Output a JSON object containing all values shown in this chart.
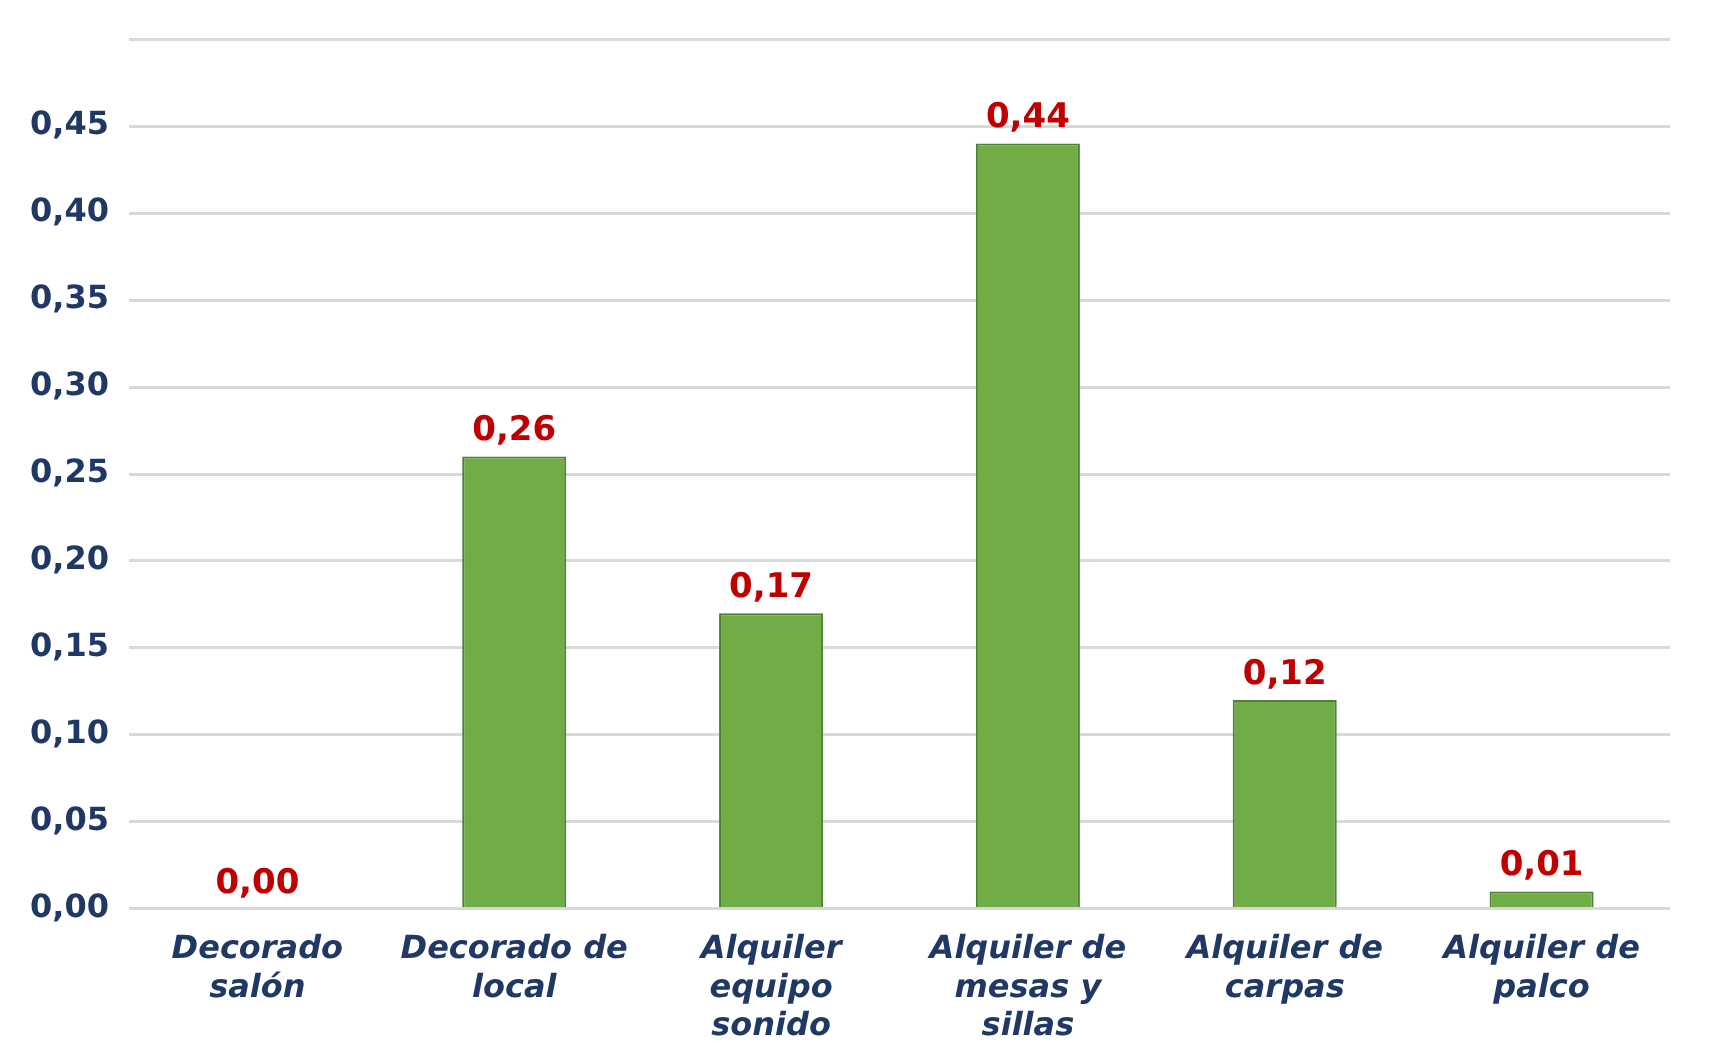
{
  "chart_data": {
    "type": "bar",
    "categories": [
      "Decorado salón",
      "Decorado de local",
      "Alquiler equipo sonido",
      "Alquiler de mesas y sillas",
      "Alquiler de carpas",
      "Alquiler de palco"
    ],
    "values": [
      0.0,
      0.26,
      0.17,
      0.44,
      0.12,
      0.01
    ],
    "value_labels": [
      "0,00",
      "0,26",
      "0,17",
      "0,44",
      "0,12",
      "0,01"
    ],
    "color": "#70ad47",
    "ylim": [
      0,
      0.5
    ],
    "yticks": [
      {
        "value": 0,
        "label": "0,00"
      },
      {
        "value": 0.05,
        "label": "0,05"
      },
      {
        "value": 0.1,
        "label": "0,10"
      },
      {
        "value": 0.15,
        "label": "0,15"
      },
      {
        "value": 0.2,
        "label": "0,20"
      },
      {
        "value": 0.25,
        "label": "0,25"
      },
      {
        "value": 0.3,
        "label": "0,30"
      },
      {
        "value": 0.35,
        "label": "0,35"
      },
      {
        "value": 0.4,
        "label": "0,40"
      },
      {
        "value": 0.45,
        "label": "0,45"
      },
      {
        "value": 0.5,
        "label": null
      }
    ],
    "grid": "y",
    "legend": false
  }
}
